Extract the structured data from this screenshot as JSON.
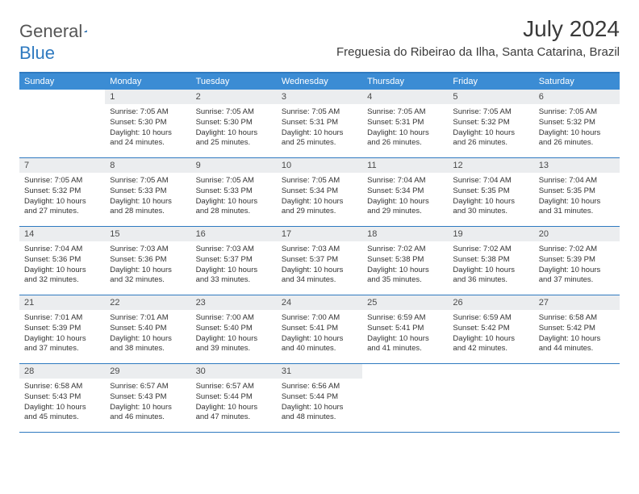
{
  "brand": {
    "part1": "General",
    "part2": "Blue"
  },
  "title": "July 2024",
  "location": "Freguesia do Ribeirao da Ilha, Santa Catarina, Brazil",
  "dayNames": [
    "Sunday",
    "Monday",
    "Tuesday",
    "Wednesday",
    "Thursday",
    "Friday",
    "Saturday"
  ],
  "colors": {
    "headerBg": "#3b8cd4",
    "accent": "#2f7ac0",
    "dayBg": "#ebedef",
    "text": "#333333"
  },
  "weeks": [
    [
      {
        "n": "",
        "sunrise": "",
        "sunset": "",
        "daylight1": "",
        "daylight2": ""
      },
      {
        "n": "1",
        "sunrise": "Sunrise: 7:05 AM",
        "sunset": "Sunset: 5:30 PM",
        "daylight1": "Daylight: 10 hours",
        "daylight2": "and 24 minutes."
      },
      {
        "n": "2",
        "sunrise": "Sunrise: 7:05 AM",
        "sunset": "Sunset: 5:30 PM",
        "daylight1": "Daylight: 10 hours",
        "daylight2": "and 25 minutes."
      },
      {
        "n": "3",
        "sunrise": "Sunrise: 7:05 AM",
        "sunset": "Sunset: 5:31 PM",
        "daylight1": "Daylight: 10 hours",
        "daylight2": "and 25 minutes."
      },
      {
        "n": "4",
        "sunrise": "Sunrise: 7:05 AM",
        "sunset": "Sunset: 5:31 PM",
        "daylight1": "Daylight: 10 hours",
        "daylight2": "and 26 minutes."
      },
      {
        "n": "5",
        "sunrise": "Sunrise: 7:05 AM",
        "sunset": "Sunset: 5:32 PM",
        "daylight1": "Daylight: 10 hours",
        "daylight2": "and 26 minutes."
      },
      {
        "n": "6",
        "sunrise": "Sunrise: 7:05 AM",
        "sunset": "Sunset: 5:32 PM",
        "daylight1": "Daylight: 10 hours",
        "daylight2": "and 26 minutes."
      }
    ],
    [
      {
        "n": "7",
        "sunrise": "Sunrise: 7:05 AM",
        "sunset": "Sunset: 5:32 PM",
        "daylight1": "Daylight: 10 hours",
        "daylight2": "and 27 minutes."
      },
      {
        "n": "8",
        "sunrise": "Sunrise: 7:05 AM",
        "sunset": "Sunset: 5:33 PM",
        "daylight1": "Daylight: 10 hours",
        "daylight2": "and 28 minutes."
      },
      {
        "n": "9",
        "sunrise": "Sunrise: 7:05 AM",
        "sunset": "Sunset: 5:33 PM",
        "daylight1": "Daylight: 10 hours",
        "daylight2": "and 28 minutes."
      },
      {
        "n": "10",
        "sunrise": "Sunrise: 7:05 AM",
        "sunset": "Sunset: 5:34 PM",
        "daylight1": "Daylight: 10 hours",
        "daylight2": "and 29 minutes."
      },
      {
        "n": "11",
        "sunrise": "Sunrise: 7:04 AM",
        "sunset": "Sunset: 5:34 PM",
        "daylight1": "Daylight: 10 hours",
        "daylight2": "and 29 minutes."
      },
      {
        "n": "12",
        "sunrise": "Sunrise: 7:04 AM",
        "sunset": "Sunset: 5:35 PM",
        "daylight1": "Daylight: 10 hours",
        "daylight2": "and 30 minutes."
      },
      {
        "n": "13",
        "sunrise": "Sunrise: 7:04 AM",
        "sunset": "Sunset: 5:35 PM",
        "daylight1": "Daylight: 10 hours",
        "daylight2": "and 31 minutes."
      }
    ],
    [
      {
        "n": "14",
        "sunrise": "Sunrise: 7:04 AM",
        "sunset": "Sunset: 5:36 PM",
        "daylight1": "Daylight: 10 hours",
        "daylight2": "and 32 minutes."
      },
      {
        "n": "15",
        "sunrise": "Sunrise: 7:03 AM",
        "sunset": "Sunset: 5:36 PM",
        "daylight1": "Daylight: 10 hours",
        "daylight2": "and 32 minutes."
      },
      {
        "n": "16",
        "sunrise": "Sunrise: 7:03 AM",
        "sunset": "Sunset: 5:37 PM",
        "daylight1": "Daylight: 10 hours",
        "daylight2": "and 33 minutes."
      },
      {
        "n": "17",
        "sunrise": "Sunrise: 7:03 AM",
        "sunset": "Sunset: 5:37 PM",
        "daylight1": "Daylight: 10 hours",
        "daylight2": "and 34 minutes."
      },
      {
        "n": "18",
        "sunrise": "Sunrise: 7:02 AM",
        "sunset": "Sunset: 5:38 PM",
        "daylight1": "Daylight: 10 hours",
        "daylight2": "and 35 minutes."
      },
      {
        "n": "19",
        "sunrise": "Sunrise: 7:02 AM",
        "sunset": "Sunset: 5:38 PM",
        "daylight1": "Daylight: 10 hours",
        "daylight2": "and 36 minutes."
      },
      {
        "n": "20",
        "sunrise": "Sunrise: 7:02 AM",
        "sunset": "Sunset: 5:39 PM",
        "daylight1": "Daylight: 10 hours",
        "daylight2": "and 37 minutes."
      }
    ],
    [
      {
        "n": "21",
        "sunrise": "Sunrise: 7:01 AM",
        "sunset": "Sunset: 5:39 PM",
        "daylight1": "Daylight: 10 hours",
        "daylight2": "and 37 minutes."
      },
      {
        "n": "22",
        "sunrise": "Sunrise: 7:01 AM",
        "sunset": "Sunset: 5:40 PM",
        "daylight1": "Daylight: 10 hours",
        "daylight2": "and 38 minutes."
      },
      {
        "n": "23",
        "sunrise": "Sunrise: 7:00 AM",
        "sunset": "Sunset: 5:40 PM",
        "daylight1": "Daylight: 10 hours",
        "daylight2": "and 39 minutes."
      },
      {
        "n": "24",
        "sunrise": "Sunrise: 7:00 AM",
        "sunset": "Sunset: 5:41 PM",
        "daylight1": "Daylight: 10 hours",
        "daylight2": "and 40 minutes."
      },
      {
        "n": "25",
        "sunrise": "Sunrise: 6:59 AM",
        "sunset": "Sunset: 5:41 PM",
        "daylight1": "Daylight: 10 hours",
        "daylight2": "and 41 minutes."
      },
      {
        "n": "26",
        "sunrise": "Sunrise: 6:59 AM",
        "sunset": "Sunset: 5:42 PM",
        "daylight1": "Daylight: 10 hours",
        "daylight2": "and 42 minutes."
      },
      {
        "n": "27",
        "sunrise": "Sunrise: 6:58 AM",
        "sunset": "Sunset: 5:42 PM",
        "daylight1": "Daylight: 10 hours",
        "daylight2": "and 44 minutes."
      }
    ],
    [
      {
        "n": "28",
        "sunrise": "Sunrise: 6:58 AM",
        "sunset": "Sunset: 5:43 PM",
        "daylight1": "Daylight: 10 hours",
        "daylight2": "and 45 minutes."
      },
      {
        "n": "29",
        "sunrise": "Sunrise: 6:57 AM",
        "sunset": "Sunset: 5:43 PM",
        "daylight1": "Daylight: 10 hours",
        "daylight2": "and 46 minutes."
      },
      {
        "n": "30",
        "sunrise": "Sunrise: 6:57 AM",
        "sunset": "Sunset: 5:44 PM",
        "daylight1": "Daylight: 10 hours",
        "daylight2": "and 47 minutes."
      },
      {
        "n": "31",
        "sunrise": "Sunrise: 6:56 AM",
        "sunset": "Sunset: 5:44 PM",
        "daylight1": "Daylight: 10 hours",
        "daylight2": "and 48 minutes."
      },
      {
        "n": "",
        "sunrise": "",
        "sunset": "",
        "daylight1": "",
        "daylight2": ""
      },
      {
        "n": "",
        "sunrise": "",
        "sunset": "",
        "daylight1": "",
        "daylight2": ""
      },
      {
        "n": "",
        "sunrise": "",
        "sunset": "",
        "daylight1": "",
        "daylight2": ""
      }
    ]
  ]
}
